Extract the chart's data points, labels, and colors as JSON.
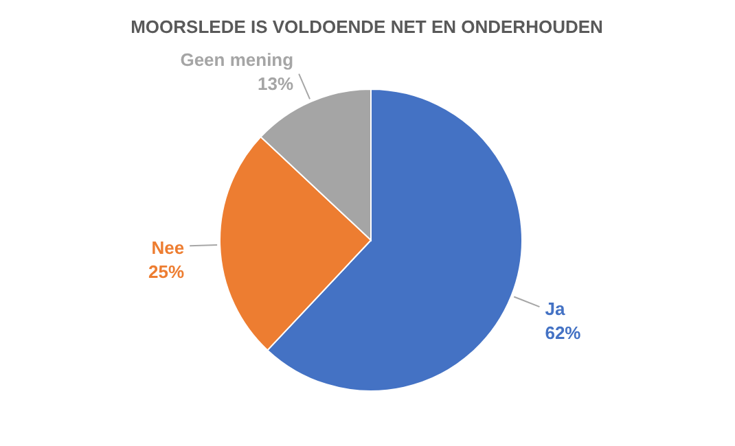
{
  "chart_data": {
    "type": "pie",
    "title": "MOORSLEDE IS VOLDOENDE NET EN ONDERHOUDEN",
    "categories": [
      "Ja",
      "Nee",
      "Geen mening"
    ],
    "values": [
      62,
      25,
      13
    ],
    "value_labels": [
      "62%",
      "25%",
      "13%"
    ],
    "colors": [
      "#4472c4",
      "#ed7d31",
      "#a5a5a5"
    ]
  }
}
